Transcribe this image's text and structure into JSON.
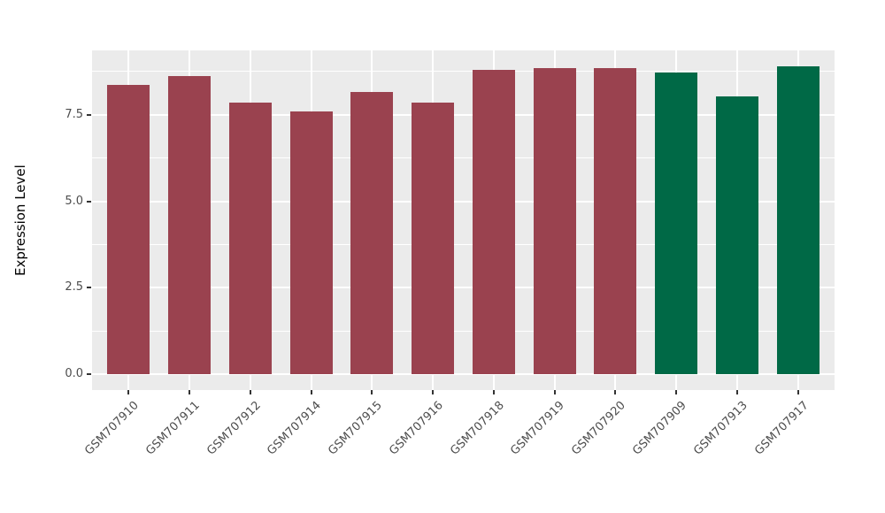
{
  "chart_data": {
    "type": "bar",
    "title": "",
    "xlabel": "",
    "ylabel": "Expression Level",
    "categories": [
      "GSM707910",
      "GSM707911",
      "GSM707912",
      "GSM707914",
      "GSM707915",
      "GSM707916",
      "GSM707918",
      "GSM707919",
      "GSM707920",
      "GSM707909",
      "GSM707913",
      "GSM707917"
    ],
    "values": [
      8.36,
      8.61,
      7.85,
      7.6,
      8.15,
      7.86,
      8.79,
      8.86,
      8.84,
      8.72,
      8.03,
      8.91
    ],
    "bar_colors": [
      "#9A424F",
      "#9A424F",
      "#9A424F",
      "#9A424F",
      "#9A424F",
      "#9A424F",
      "#9A424F",
      "#9A424F",
      "#9A424F",
      "#006946",
      "#006946",
      "#006946"
    ],
    "color_legend": {
      "maroon": "#9A424F",
      "green": "#006946"
    },
    "ylim": [
      0,
      9.36
    ],
    "yticks": [
      0,
      2.5,
      5,
      7.5
    ],
    "ytick_labels": [
      "0.0",
      "2.5",
      "5.0",
      "7.5"
    ],
    "yminor_ticks": [
      1.25,
      3.75,
      6.25,
      8.75
    ],
    "grid": "major and minor horizontal white lines, vertical white line at each category center",
    "legend_position": "none",
    "style": {
      "figure_bg": "#FFFFFF",
      "panel_bg": "#EBEBEB",
      "grid_color": "#FFFFFF",
      "tick_mark_color": "#333333",
      "axis_text_color": "#4D4D4D",
      "axis_title_color": "#000000",
      "bar_width_fraction": 0.7,
      "x_label_rotation_deg": -45
    }
  }
}
